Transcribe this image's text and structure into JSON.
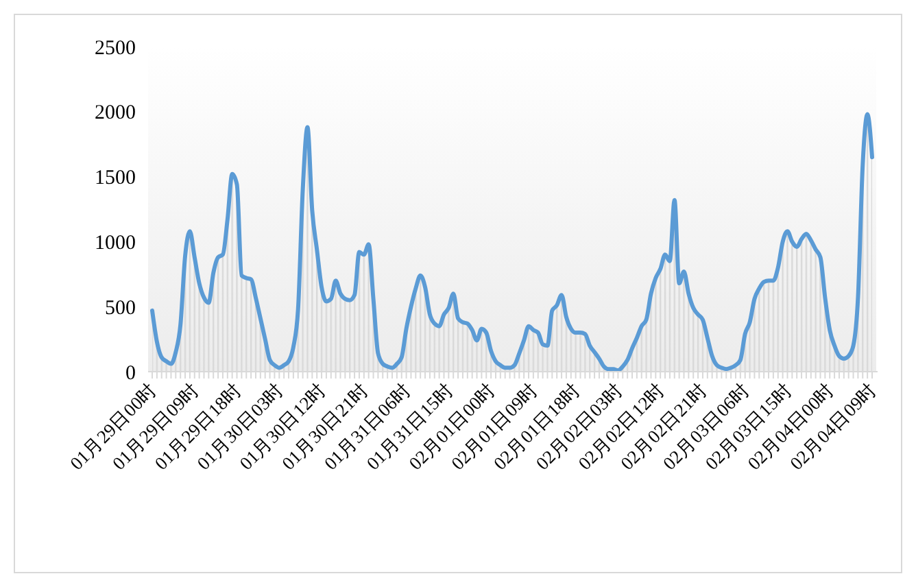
{
  "chart_data": {
    "type": "area",
    "categories": [
      "01月29日00时",
      null,
      null,
      null,
      null,
      null,
      null,
      null,
      null,
      "01月29日09时",
      null,
      null,
      null,
      null,
      null,
      null,
      null,
      null,
      "01月29日18时",
      null,
      null,
      null,
      null,
      null,
      null,
      null,
      null,
      "01月30日03时",
      null,
      null,
      null,
      null,
      null,
      null,
      null,
      null,
      "01月30日12时",
      null,
      null,
      null,
      null,
      null,
      null,
      null,
      null,
      "01月30日21时",
      null,
      null,
      null,
      null,
      null,
      null,
      null,
      null,
      "01月31日06时",
      null,
      null,
      null,
      null,
      null,
      null,
      null,
      null,
      "01月31日15时",
      null,
      null,
      null,
      null,
      null,
      null,
      null,
      null,
      "02月01日00时",
      null,
      null,
      null,
      null,
      null,
      null,
      null,
      null,
      "02月01日09时",
      null,
      null,
      null,
      null,
      null,
      null,
      null,
      null,
      "02月01日18时",
      null,
      null,
      null,
      null,
      null,
      null,
      null,
      null,
      "02月02日03时",
      null,
      null,
      null,
      null,
      null,
      null,
      null,
      null,
      "02月02日12时",
      null,
      null,
      null,
      null,
      null,
      null,
      null,
      null,
      "02月02日21时",
      null,
      null,
      null,
      null,
      null,
      null,
      null,
      null,
      "02月03日06时",
      null,
      null,
      null,
      null,
      null,
      null,
      null,
      null,
      "02月03日15时",
      null,
      null,
      null,
      null,
      null,
      null,
      null,
      null,
      "02月04日00时",
      null,
      null,
      null,
      null,
      null,
      null,
      null,
      null,
      "02月04日09时"
    ],
    "series": [
      {
        "color": "#5b9bd5",
        "values": [
          470,
          230,
          110,
          80,
          60,
          150,
          360,
          890,
          1080,
          880,
          680,
          570,
          530,
          760,
          880,
          900,
          1170,
          1520,
          1440,
          740,
          720,
          710,
          570,
          410,
          250,
          90,
          50,
          30,
          50,
          80,
          190,
          480,
          1400,
          1880,
          1240,
          940,
          650,
          540,
          560,
          700,
          600,
          560,
          550,
          590,
          920,
          900,
          980,
          560,
          140,
          60,
          40,
          30,
          60,
          110,
          330,
          500,
          640,
          740,
          650,
          440,
          370,
          350,
          440,
          490,
          600,
          410,
          380,
          370,
          320,
          240,
          330,
          300,
          160,
          80,
          50,
          30,
          30,
          50,
          140,
          240,
          350,
          320,
          300,
          210,
          200,
          470,
          510,
          590,
          420,
          330,
          300,
          300,
          290,
          200,
          150,
          100,
          40,
          20,
          20,
          10,
          40,
          90,
          180,
          260,
          350,
          400,
          600,
          720,
          790,
          900,
          850,
          1320,
          680,
          770,
          600,
          490,
          440,
          400,
          260,
          120,
          50,
          30,
          20,
          30,
          50,
          90,
          290,
          380,
          560,
          640,
          690,
          700,
          700,
          800,
          1000,
          1080,
          1000,
          960,
          1020,
          1060,
          1010,
          940,
          880,
          570,
          320,
          200,
          120,
          100,
          120,
          200,
          570,
          1590,
          1980,
          1650
        ]
      }
    ],
    "ylim": [
      0,
      2500
    ],
    "yticks": [
      0,
      500,
      1000,
      1500,
      2000,
      2500
    ],
    "grid": false
  }
}
